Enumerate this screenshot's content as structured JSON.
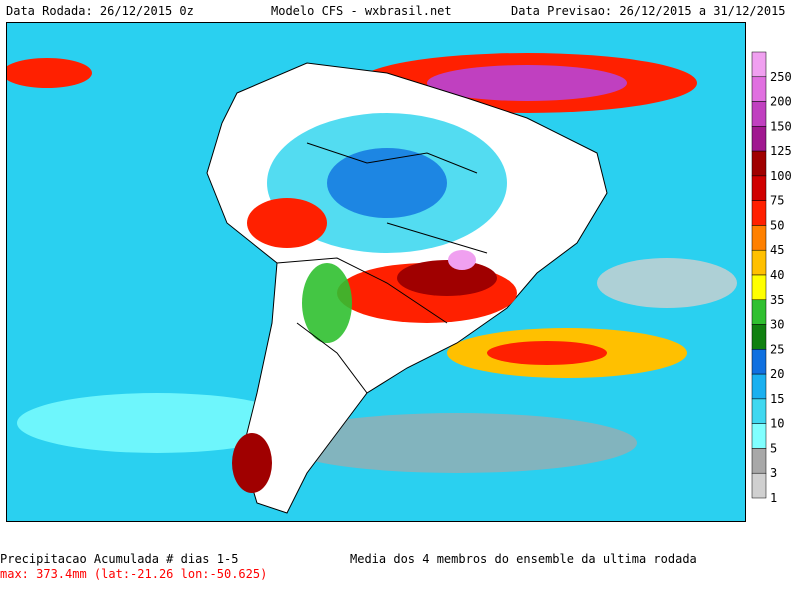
{
  "header": {
    "left": "Data Rodada: 26/12/2015 0z",
    "center": "Modelo CFS - wxbrasil.net",
    "right": "Data Previsao: 26/12/2015 a 31/12/2015"
  },
  "footer": {
    "title": "Precipitacao Acumulada # dias 1-5",
    "max": "max: 373.4mm (lat:-21.26 lon:-50.625)",
    "note": "Media dos 4 membros do ensemble da ultima rodada"
  },
  "legend": {
    "labels": [
      "250",
      "200",
      "150",
      "125",
      "100",
      "75",
      "50",
      "45",
      "40",
      "35",
      "30",
      "25",
      "20",
      "15",
      "10",
      "5",
      "3",
      "1"
    ],
    "colors": [
      "#f0a0f0",
      "#e070e0",
      "#c040c0",
      "#a01890",
      "#a00000",
      "#d00000",
      "#ff2000",
      "#ff8000",
      "#ffc000",
      "#ffff00",
      "#30c030",
      "#108010",
      "#1070e0",
      "#1ab0f0",
      "#40d8f0",
      "#80ffff",
      "#a8a8a8",
      "#d0d0d0"
    ]
  },
  "map_colors": {
    "ocean": "#2ad0f0",
    "land": "#ffffff",
    "borders": "#000000"
  }
}
